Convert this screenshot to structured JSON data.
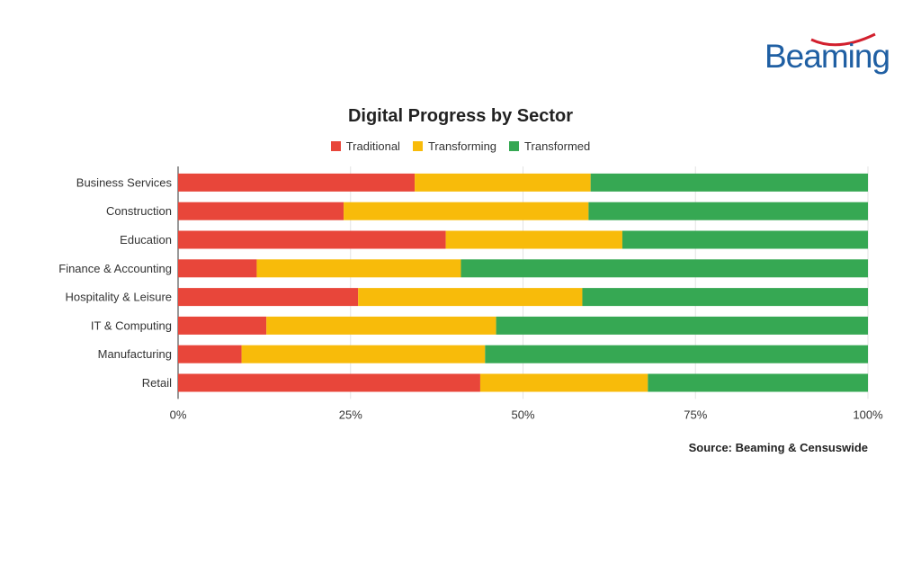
{
  "logo": {
    "text": "Beaming"
  },
  "colors": {
    "traditional": "#e8463a",
    "transforming": "#f8bb0a",
    "transformed": "#36a853",
    "logo": "#1f5fa3",
    "logo_swoosh": "#d2202e"
  },
  "source": "Source: Beaming & Censuswide",
  "chart_data": {
    "type": "bar",
    "orientation": "horizontal",
    "stacked": true,
    "title": "Digital Progress by Sector",
    "legend_position": "top",
    "categories": [
      "Business Services",
      "Construction",
      "Education",
      "Finance & Accounting",
      "Hospitality & Leisure",
      "IT & Computing",
      "Manufacturing",
      "Retail"
    ],
    "series": [
      {
        "name": "Traditional",
        "values": [
          34.3,
          24.0,
          38.8,
          11.4,
          26.1,
          12.8,
          9.2,
          43.8
        ]
      },
      {
        "name": "Transforming",
        "values": [
          25.5,
          35.5,
          25.6,
          29.6,
          32.5,
          33.3,
          35.3,
          24.3
        ]
      },
      {
        "name": "Transformed",
        "values": [
          40.2,
          40.5,
          35.6,
          59.0,
          41.4,
          53.9,
          55.5,
          31.9
        ]
      }
    ],
    "xlim": [
      0,
      100
    ],
    "xticks": [
      "0%",
      "25%",
      "50%",
      "75%",
      "100%"
    ],
    "grid": "vertical"
  }
}
